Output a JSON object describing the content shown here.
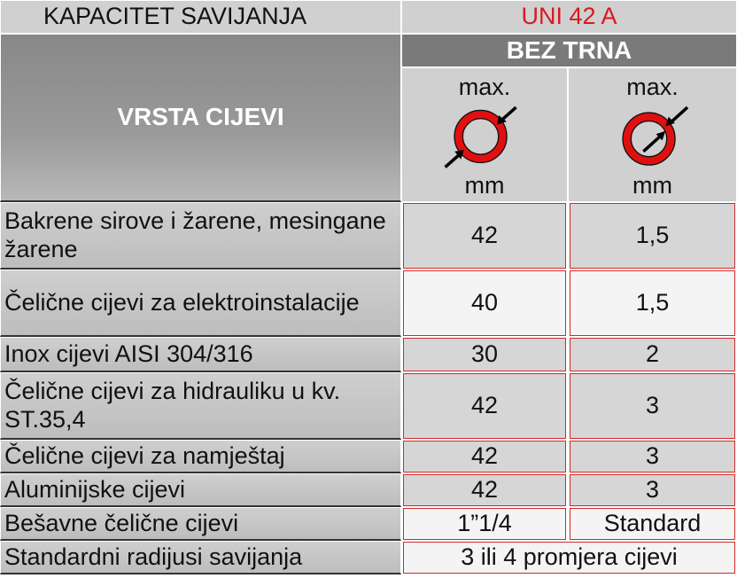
{
  "header": {
    "title": "KAPACITET SAVIJANJA",
    "model": "UNI 42 A",
    "mode": "BEZ TRNA",
    "row_header": "VRSTA CIJEVI"
  },
  "columns": [
    {
      "top": "max.",
      "bottom": "mm",
      "icon": "pipe-outer-diameter-icon"
    },
    {
      "top": "max.",
      "bottom": "mm",
      "icon": "pipe-wall-thickness-icon"
    }
  ],
  "rows": [
    {
      "label": "Bakrene sirove i žarene, mesingane žarene",
      "diameter": "42",
      "wall": "1,5"
    },
    {
      "label": "Čelične cijevi za elektroinstalacije",
      "diameter": "40",
      "wall": "1,5"
    },
    {
      "label": "Inox cijevi AISI 304/316",
      "diameter": "30",
      "wall": "2"
    },
    {
      "label": "Čelične cijevi za hidrauliku u kv. ST.35,4",
      "diameter": "42",
      "wall": "3"
    },
    {
      "label": "Čelične cijevi za namještaj",
      "diameter": "42",
      "wall": "3"
    },
    {
      "label": "Aluminijske cijevi",
      "diameter": "42",
      "wall": "3"
    },
    {
      "label": "Bešavne čelične cijevi",
      "diameter": "1”1/4",
      "wall": "Standard"
    }
  ],
  "footer": {
    "label": "Standardni radijusi savijanja",
    "value": "3 ili 4 promjera cijevi"
  },
  "colors": {
    "accent": "#d71920",
    "header_dark": "#7a7a7a"
  }
}
